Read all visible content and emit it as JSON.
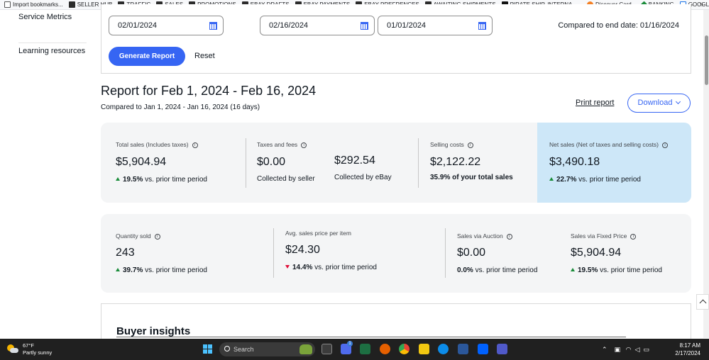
{
  "bookmarks": [
    {
      "label": "Import bookmarks...",
      "icon": "import-icon"
    },
    {
      "label": "SELLER HUB",
      "icon": "folder-icon"
    },
    {
      "label": "TRAFFIC",
      "icon": "folder-icon"
    },
    {
      "label": "SALES",
      "icon": "folder-icon"
    },
    {
      "label": "PROMOTIONS",
      "icon": "folder-icon"
    },
    {
      "label": "EBAY DRAFTS",
      "icon": "folder-icon"
    },
    {
      "label": "EBAY PAYMENTS",
      "icon": "folder-icon"
    },
    {
      "label": "EBAY PREFRENCES",
      "icon": "folder-icon"
    },
    {
      "label": "AWAITING SHIPMENTS",
      "icon": "folder-icon"
    },
    {
      "label": "PIRATE SHIP, INTERNA...",
      "icon": "pirate-ship-icon"
    },
    {
      "label": "Discover Card",
      "icon": "discover-icon"
    },
    {
      "label": "BANKING",
      "icon": "banking-icon"
    },
    {
      "label": "GOOGLE CALENDAR",
      "icon": "calendar-icon"
    }
  ],
  "bookmarks_more": "»",
  "nav": {
    "service_metrics": "Service Metrics",
    "learning_resources": "Learning resources"
  },
  "filters": {
    "start_date": "02/01/2024",
    "end_date": "02/16/2024",
    "compare_start_date": "01/01/2024",
    "compare_end_text": "Compared to end date: 01/16/2024",
    "generate_label": "Generate Report",
    "reset_label": "Reset"
  },
  "report": {
    "title": "Report for Feb 1, 2024 - Feb 16, 2024",
    "subtitle": "Compared to Jan 1, 2024 - Jan 16, 2024 (16 days)",
    "print_label": "Print report",
    "download_label": "Download"
  },
  "metrics_row1": {
    "total_sales": {
      "label": "Total sales (Includes taxes)",
      "value": "$5,904.94",
      "change": "19.5%",
      "change_text": "vs. prior time period",
      "direction": "up"
    },
    "taxes_fees": {
      "label": "Taxes and fees",
      "value_seller": "$0.00",
      "note_seller": "Collected by seller",
      "value_ebay": "$292.54",
      "note_ebay": "Collected by eBay"
    },
    "selling_costs": {
      "label": "Selling costs",
      "value": "$2,122.22",
      "note": "35.9% of your total sales"
    },
    "net_sales": {
      "label": "Net sales (Net of taxes and selling costs)",
      "value": "$3,490.18",
      "change": "22.7%",
      "change_text": "vs. prior time period",
      "direction": "up"
    }
  },
  "metrics_row2": {
    "quantity_sold": {
      "label": "Quantity sold",
      "value": "243",
      "change": "39.7%",
      "change_text": "vs. prior time period",
      "direction": "up"
    },
    "avg_price": {
      "label": "Avg. sales price per item",
      "value": "$24.30",
      "change": "14.4%",
      "change_text": "vs. prior time period",
      "direction": "down"
    },
    "auction": {
      "label": "Sales via Auction",
      "value": "$0.00",
      "change": "0.0%",
      "change_text": "vs. prior time period",
      "direction": "none"
    },
    "fixed_price": {
      "label": "Sales via Fixed Price",
      "value": "$5,904.94",
      "change": "19.5%",
      "change_text": "vs. prior time period",
      "direction": "up"
    }
  },
  "buyer_insights": {
    "title": "Buyer insights"
  },
  "taskbar": {
    "temperature": "67°F",
    "weather": "Partly sunny",
    "search_placeholder": "Search",
    "notification_count": "1",
    "time": "8:17 AM",
    "date": "2/17/2024"
  },
  "colors": {
    "primary_blue": "#3665f3",
    "net_sales_bg": "#cde7f8",
    "up_green": "#1a8c3a",
    "down_red": "#e0103a"
  }
}
